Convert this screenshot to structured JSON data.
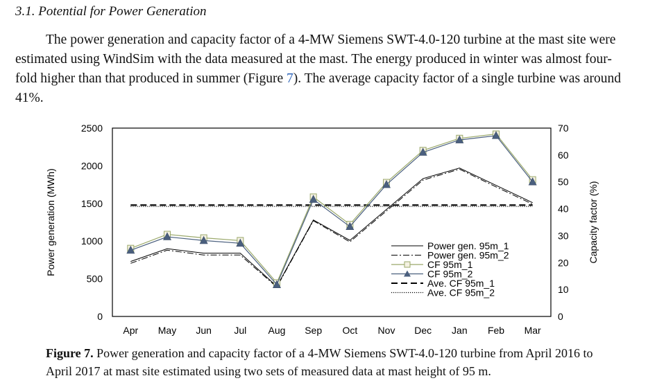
{
  "section": {
    "heading": "3.1. Potential for Power Generation"
  },
  "paragraph": {
    "part1": "The power generation and capacity factor of a 4-MW Siemens SWT-4.0-120 turbine at the mast site were estimated using WindSim with the data measured at the mast. The energy produced in winter was almost four-fold higher than that produced in summer (Figure ",
    "ref": "7",
    "part2": "). The average capacity factor of a single turbine was around 41%."
  },
  "figure": {
    "caption_label": "Figure 7.",
    "caption_text": " Power generation and capacity factor of a 4-MW Siemens SWT-4.0-120 turbine from April 2016 to April 2017 at mast site estimated using two sets of measured data at mast height of 95 m."
  },
  "chart_data": {
    "type": "line",
    "categories": [
      "Apr",
      "May",
      "Jun",
      "Jul",
      "Aug",
      "Sep",
      "Oct",
      "Nov",
      "Dec",
      "Jan",
      "Feb",
      "Mar"
    ],
    "ylabel": "Power generation (MWh)",
    "y2label": "Capacity factor (%)",
    "ylim": [
      0,
      2500
    ],
    "y2lim": [
      0,
      70
    ],
    "yticks": [
      "0",
      "500",
      "1000",
      "1500",
      "2000",
      "2500"
    ],
    "y2ticks": [
      "0",
      "10",
      "20",
      "30",
      "40",
      "50",
      "60",
      "70"
    ],
    "legend_position": "inside-bottom-right",
    "grid": false,
    "series": [
      {
        "name": "Power gen. 95m_1",
        "axis": "left",
        "style": "solid-thin",
        "color": "#000000",
        "values": [
          730,
          900,
          840,
          840,
          400,
          1280,
          1010,
          1420,
          1830,
          1970,
          1740,
          1510
        ]
      },
      {
        "name": "Power gen. 95m_2",
        "axis": "left",
        "style": "dashdot",
        "color": "#000000",
        "values": [
          705,
          880,
          815,
          815,
          390,
          1270,
          990,
          1400,
          1810,
          1955,
          1720,
          1490
        ]
      },
      {
        "name": "CF 95m_1",
        "axis": "right",
        "style": "square-marker",
        "color": "#9aa86a",
        "values": [
          25.3,
          30.5,
          29.2,
          28.2,
          12.5,
          44.4,
          34.2,
          49.8,
          61.7,
          66.2,
          67.8,
          50.8
        ]
      },
      {
        "name": "CF 95m_2",
        "axis": "right",
        "style": "triangle-marker",
        "color": "#4a5f7e",
        "values": [
          24.6,
          29.6,
          28.2,
          27.2,
          11.8,
          43.5,
          33.4,
          49.0,
          61.0,
          65.6,
          67.2,
          50.0
        ]
      },
      {
        "name": "Ave. CF 95m_1",
        "axis": "right",
        "style": "long-dash",
        "color": "#000000",
        "values": [
          41.4,
          41.4,
          41.4,
          41.4,
          41.4,
          41.4,
          41.4,
          41.4,
          41.4,
          41.4,
          41.4,
          41.4
        ]
      },
      {
        "name": "Ave. CF 95m_2",
        "axis": "right",
        "style": "dotted",
        "color": "#000000",
        "values": [
          40.9,
          40.9,
          40.9,
          40.9,
          40.9,
          40.9,
          40.9,
          40.9,
          40.9,
          40.9,
          40.9,
          40.9
        ]
      }
    ]
  }
}
